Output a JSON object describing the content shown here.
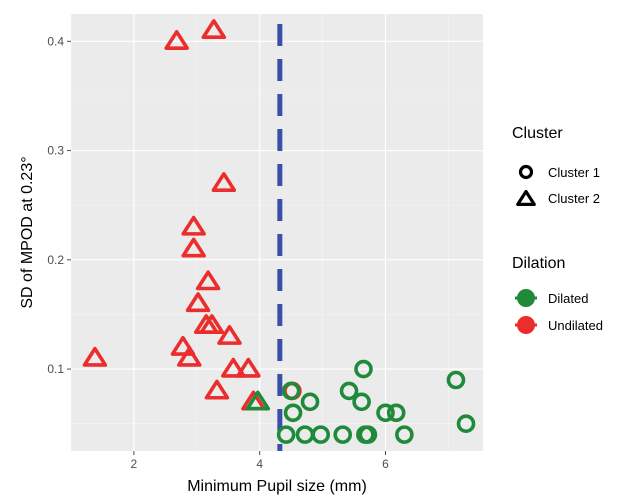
{
  "chart_data": {
    "type": "scatter",
    "xlabel": "Minimum Pupil size (mm)",
    "ylabel": "SD of MPOD at 0.23°",
    "xlim": [
      1.0,
      7.55
    ],
    "ylim": [
      0.025,
      0.425
    ],
    "xticks": [
      2,
      4,
      6
    ],
    "yticks": [
      0.1,
      0.2,
      0.3,
      0.4
    ],
    "xtick_labels": [
      "2",
      "4",
      "6"
    ],
    "ytick_labels": [
      "0.1",
      "0.2",
      "0.3",
      "0.4"
    ],
    "background": "#ebebeb",
    "grid": true,
    "vline": {
      "x": 4.32,
      "color": "#3a4fa8",
      "style": "dashed"
    },
    "shape_legend": {
      "title": "Cluster",
      "items": [
        {
          "label": "Cluster 1",
          "shape": "circle"
        },
        {
          "label": "Cluster 2",
          "shape": "triangle"
        }
      ]
    },
    "color_legend": {
      "title": "Dilation",
      "items": [
        {
          "label": "Dilated",
          "color": "#1e8a3a"
        },
        {
          "label": "Undilated",
          "color": "#ec2d2d"
        }
      ]
    },
    "series": [
      {
        "name": "Cluster 2 / Undilated",
        "shape": "triangle",
        "color": "#ec2d2d",
        "points": [
          {
            "x": 2.68,
            "y": 0.4
          },
          {
            "x": 3.27,
            "y": 0.41
          },
          {
            "x": 3.43,
            "y": 0.27
          },
          {
            "x": 2.95,
            "y": 0.23
          },
          {
            "x": 2.95,
            "y": 0.21
          },
          {
            "x": 3.18,
            "y": 0.18
          },
          {
            "x": 3.02,
            "y": 0.16
          },
          {
            "x": 3.15,
            "y": 0.14
          },
          {
            "x": 3.24,
            "y": 0.14
          },
          {
            "x": 3.52,
            "y": 0.13
          },
          {
            "x": 2.78,
            "y": 0.12
          },
          {
            "x": 2.88,
            "y": 0.11
          },
          {
            "x": 1.38,
            "y": 0.11
          },
          {
            "x": 3.58,
            "y": 0.1
          },
          {
            "x": 3.82,
            "y": 0.1
          },
          {
            "x": 3.32,
            "y": 0.08
          },
          {
            "x": 3.9,
            "y": 0.07
          }
        ]
      },
      {
        "name": "Cluster 2 / Dilated",
        "shape": "triangle",
        "color": "#1e8a3a",
        "points": [
          {
            "x": 3.97,
            "y": 0.07
          }
        ]
      },
      {
        "name": "Cluster 1 / Undilated",
        "shape": "circle",
        "color": "#ec2d2d",
        "points": [
          {
            "x": 4.52,
            "y": 0.08
          }
        ]
      },
      {
        "name": "Cluster 1 / Dilated",
        "shape": "circle",
        "color": "#1e8a3a",
        "points": [
          {
            "x": 5.65,
            "y": 0.1
          },
          {
            "x": 7.12,
            "y": 0.09
          },
          {
            "x": 4.5,
            "y": 0.08
          },
          {
            "x": 5.42,
            "y": 0.08
          },
          {
            "x": 4.8,
            "y": 0.07
          },
          {
            "x": 5.62,
            "y": 0.07
          },
          {
            "x": 4.53,
            "y": 0.06
          },
          {
            "x": 6.0,
            "y": 0.06
          },
          {
            "x": 6.17,
            "y": 0.06
          },
          {
            "x": 7.28,
            "y": 0.05
          },
          {
            "x": 4.42,
            "y": 0.04
          },
          {
            "x": 4.72,
            "y": 0.04
          },
          {
            "x": 4.97,
            "y": 0.04
          },
          {
            "x": 5.32,
            "y": 0.04
          },
          {
            "x": 5.68,
            "y": 0.04
          },
          {
            "x": 5.72,
            "y": 0.04
          },
          {
            "x": 6.3,
            "y": 0.04
          }
        ]
      }
    ]
  }
}
